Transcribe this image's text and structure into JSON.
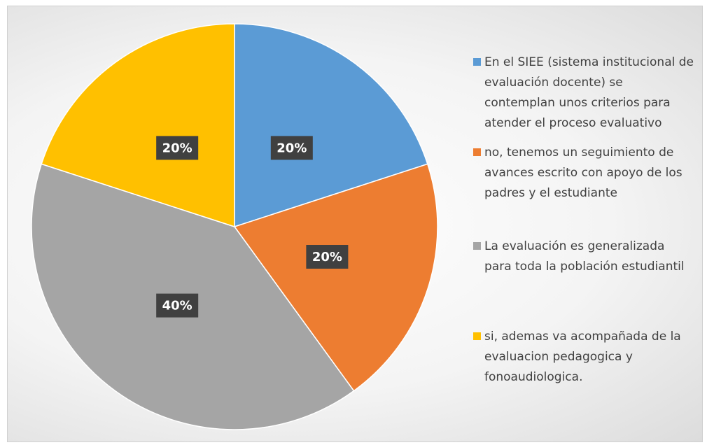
{
  "chart_data": {
    "type": "pie",
    "categories": [
      "En el SIEE (sistema institucional de evaluación docente) se contemplan unos criterios para atender el proceso evaluativo",
      "no, tenemos un seguimiento de avances escrito con apoyo de los padres y el estudiante",
      "La evaluación es generalizada para toda la población estudiantil",
      "si, ademas va acompañada de la evaluacion pedagogica y fonoaudiologica."
    ],
    "values": [
      20,
      20,
      40,
      20
    ],
    "value_labels": [
      "20%",
      "20%",
      "40%",
      "20%"
    ],
    "colors": [
      "#5b9bd5",
      "#ed7d31",
      "#a5a5a5",
      "#ffc000"
    ],
    "legend": "right"
  }
}
